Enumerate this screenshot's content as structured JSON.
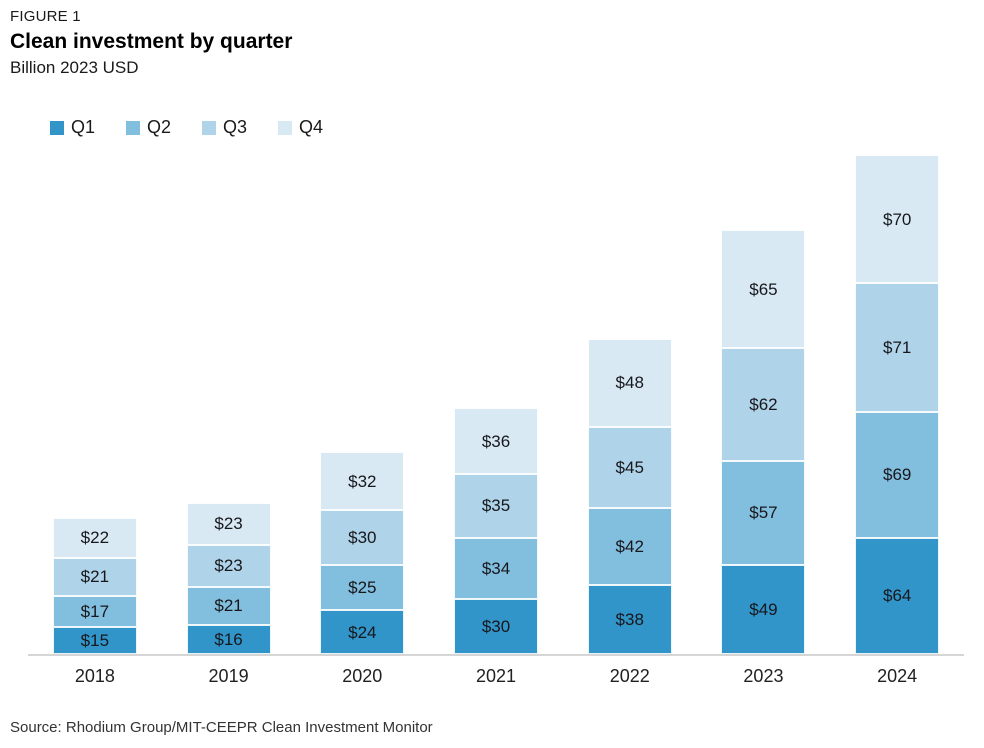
{
  "header": {
    "figure_label": "FIGURE 1",
    "title": "Clean investment by quarter",
    "subtitle": "Billion 2023 USD"
  },
  "source": "Source: Rhodium Group/MIT-CEEPR Clean Investment Monitor",
  "chart_data": {
    "type": "bar",
    "stacked": true,
    "title": "Clean investment by quarter",
    "subtitle": "Billion 2023 USD",
    "xlabel": "",
    "ylabel": "Billion 2023 USD",
    "value_prefix": "$",
    "grid": false,
    "legend_position": "top-left",
    "legend_entries": [
      "Q1",
      "Q2",
      "Q3",
      "Q4"
    ],
    "categories": [
      "2018",
      "2019",
      "2020",
      "2021",
      "2022",
      "2023",
      "2024"
    ],
    "series": [
      {
        "name": "Q1",
        "color": "#3195C9",
        "values": [
          15,
          16,
          24,
          30,
          38,
          49,
          64
        ]
      },
      {
        "name": "Q2",
        "color": "#82BEDD",
        "values": [
          17,
          21,
          25,
          34,
          42,
          57,
          69
        ]
      },
      {
        "name": "Q3",
        "color": "#AFD3E8",
        "values": [
          21,
          23,
          30,
          35,
          45,
          62,
          71
        ]
      },
      {
        "name": "Q4",
        "color": "#D8E9F4",
        "values": [
          22,
          23,
          32,
          36,
          48,
          65,
          70
        ]
      }
    ],
    "totals": [
      75,
      83,
      111,
      135,
      173,
      233,
      274
    ],
    "axis_line_color": "#d6d6d6"
  }
}
